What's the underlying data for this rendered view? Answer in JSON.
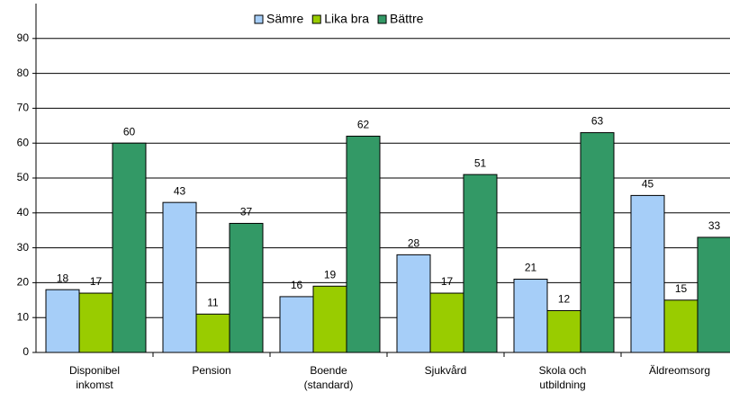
{
  "chart_data": {
    "type": "bar",
    "categories": [
      "Disponibel inkomst",
      "Pension",
      "Boende (standard)",
      "Sjukvård",
      "Skola och utbildning",
      "Äldreomsorg"
    ],
    "series": [
      {
        "name": "Sämre",
        "color": "#a6cef8",
        "values": [
          18,
          43,
          16,
          28,
          21,
          45
        ]
      },
      {
        "name": "Lika bra",
        "color": "#99cc00",
        "values": [
          17,
          11,
          19,
          17,
          12,
          15
        ]
      },
      {
        "name": "Bättre",
        "color": "#339966",
        "values": [
          60,
          37,
          62,
          51,
          63,
          33
        ]
      }
    ],
    "ylim": [
      0,
      100
    ],
    "yticks": [
      0,
      10,
      20,
      30,
      40,
      50,
      60,
      70,
      80,
      90
    ],
    "grid": true,
    "legend": "top"
  }
}
